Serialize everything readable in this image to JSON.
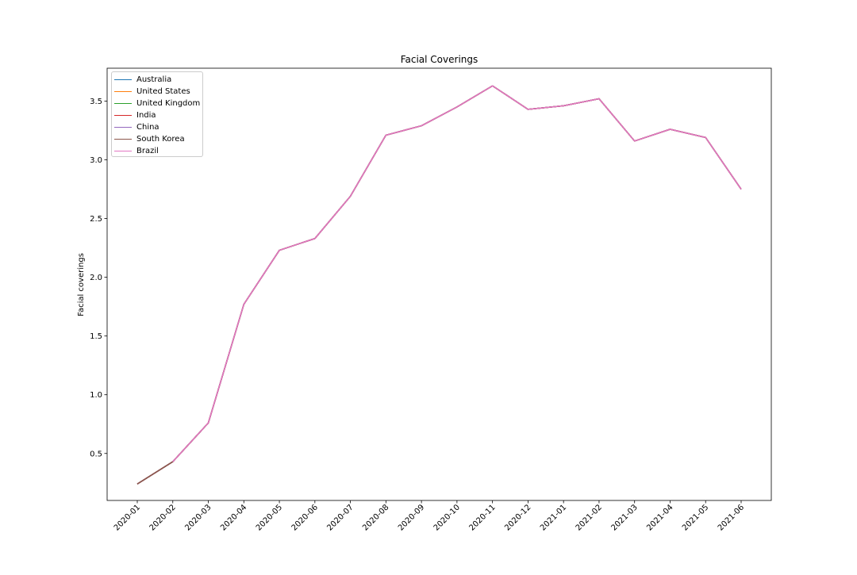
{
  "chart_data": {
    "type": "line",
    "title": "Facial Coverings",
    "xlabel": "",
    "ylabel": "Facial coverings",
    "categories": [
      "2020-01",
      "2020-02",
      "2020-03",
      "2020-04",
      "2020-05",
      "2020-06",
      "2020-07",
      "2020-08",
      "2020-09",
      "2020-10",
      "2020-11",
      "2020-12",
      "2021-01",
      "2021-02",
      "2021-03",
      "2021-04",
      "2021-05",
      "2021-06"
    ],
    "ylim": [
      0.1,
      3.78
    ],
    "yticks": [
      0.5,
      1.0,
      1.5,
      2.0,
      2.5,
      3.0,
      3.5
    ],
    "ytick_labels": [
      "0.5",
      "1.0",
      "1.5",
      "2.0",
      "2.5",
      "3.0",
      "3.5"
    ],
    "grid": false,
    "legend_position": "top-left",
    "series": [
      {
        "name": "Australia",
        "color": "#1f77b4",
        "values": [
          0.24,
          0.43,
          0.76,
          1.77,
          2.23,
          2.33,
          2.69,
          3.21,
          3.29,
          3.45,
          3.63,
          3.43,
          3.46,
          3.52,
          3.16,
          3.26,
          3.19,
          2.75
        ]
      },
      {
        "name": "United States",
        "color": "#ff7f0e",
        "values": [
          0.24,
          0.43,
          0.76,
          1.77,
          2.23,
          2.33,
          2.69,
          3.21,
          3.29,
          3.45,
          3.63,
          3.43,
          3.46,
          3.52,
          3.16,
          3.26,
          3.19,
          2.75
        ]
      },
      {
        "name": "United Kingdom",
        "color": "#2ca02c",
        "values": [
          0.24,
          0.43,
          0.76,
          1.77,
          2.23,
          2.33,
          2.69,
          3.21,
          3.29,
          3.45,
          3.63,
          3.43,
          3.46,
          3.52,
          3.16,
          3.26,
          3.19,
          2.75
        ]
      },
      {
        "name": "India",
        "color": "#d62728",
        "values": [
          0.24,
          0.43,
          0.76,
          1.77,
          2.23,
          2.33,
          2.69,
          3.21,
          3.29,
          3.45,
          3.63,
          3.43,
          3.46,
          3.52,
          3.16,
          3.26,
          3.19,
          2.75
        ]
      },
      {
        "name": "China",
        "color": "#9467bd",
        "values": [
          0.24,
          0.43,
          0.76,
          1.77,
          2.23,
          2.33,
          2.69,
          3.21,
          3.29,
          3.45,
          3.63,
          3.43,
          3.46,
          3.52,
          3.16,
          3.26,
          3.19,
          2.75
        ]
      },
      {
        "name": "South Korea",
        "color": "#8c564b",
        "values": [
          0.24,
          0.43,
          0.76,
          1.77,
          2.23,
          2.33,
          2.69,
          3.21,
          3.29,
          3.45,
          3.63,
          3.43,
          3.46,
          3.52,
          3.16,
          3.26,
          3.19,
          2.75
        ]
      },
      {
        "name": "Brazil",
        "color": "#e377c2",
        "values": [
          null,
          0.43,
          0.76,
          1.77,
          2.23,
          2.33,
          2.69,
          3.21,
          3.29,
          3.45,
          3.63,
          3.43,
          3.46,
          3.52,
          3.16,
          3.26,
          3.19,
          2.75
        ]
      }
    ]
  }
}
